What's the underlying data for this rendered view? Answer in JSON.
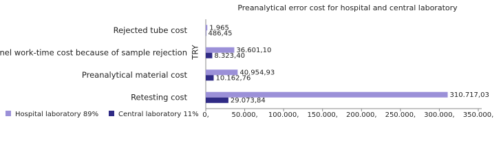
{
  "chart_data": {
    "type": "bar",
    "orientation": "horizontal",
    "title": "Preanalytical error cost for hospital and central laboratory",
    "y_label": "TRY",
    "categories": [
      "Rejected tube cost",
      "Personnel work-time cost because of sample rejection",
      "Preanalytical material cost",
      "Retesting cost"
    ],
    "series": [
      {
        "name": "Hospital laboratory 89%",
        "color": "#9b90d8",
        "values": [
          1965,
          36601.1,
          40954.93,
          310717.03
        ],
        "value_labels": [
          "1.965",
          "36.601,10",
          "40.954,93",
          "310.717,03"
        ]
      },
      {
        "name": "Central laboratory 11%",
        "color": "#2f2a85",
        "values": [
          486.45,
          8323.4,
          10162.76,
          29073.84
        ],
        "value_labels": [
          "486,45",
          "8.323,40",
          "10.162,76",
          "29.073,84"
        ]
      }
    ],
    "xlim": [
      0,
      350000
    ],
    "xticks": [
      {
        "value": 0,
        "label": "0,"
      },
      {
        "value": 50000,
        "label": "50.000,"
      },
      {
        "value": 100000,
        "label": "100.000,"
      },
      {
        "value": 150000,
        "label": "150.000,"
      },
      {
        "value": 200000,
        "label": "200.000,"
      },
      {
        "value": 250000,
        "label": "250.000,"
      },
      {
        "value": 300000,
        "label": "300.000,"
      },
      {
        "value": 350000,
        "label": "350.000,"
      }
    ],
    "legend": "bottom-left"
  }
}
